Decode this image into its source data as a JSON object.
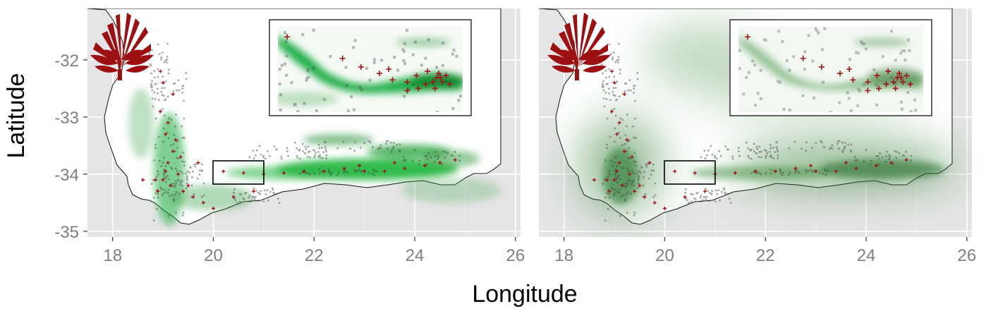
{
  "figure": {
    "xlabel": "Longitude",
    "ylabel": "Latitude",
    "x_ticks": [
      "18",
      "20",
      "22",
      "24",
      "26"
    ],
    "y_ticks": [
      "-32",
      "-33",
      "-34",
      "-35"
    ]
  },
  "chart_data": {
    "type": "map",
    "xlabel": "Longitude",
    "ylabel": "Latitude",
    "xlim": [
      17.5,
      26.1
    ],
    "ylim": [
      -35.1,
      -31.1
    ],
    "x_ticks": [
      18,
      20,
      22,
      24,
      26
    ],
    "y_ticks": [
      -32,
      -33,
      -34,
      -35
    ],
    "panels": [
      {
        "inset_extent": {
          "lon": [
            20.0,
            21.0
          ],
          "lat": [
            -34.1,
            -33.7
          ]
        },
        "presence_color": "#a50f15",
        "suitability_color": "#00a020",
        "presences": [
          [
            19.05,
            -33.95
          ],
          [
            19.1,
            -33.8
          ],
          [
            19.2,
            -33.6
          ],
          [
            19.0,
            -34.1
          ],
          [
            19.15,
            -34.2
          ],
          [
            19.3,
            -34.0
          ],
          [
            19.25,
            -33.4
          ],
          [
            19.1,
            -33.1
          ],
          [
            18.95,
            -32.9
          ],
          [
            19.05,
            -33.3
          ],
          [
            19.4,
            -34.3
          ],
          [
            19.6,
            -34.4
          ],
          [
            19.8,
            -34.5
          ],
          [
            19.5,
            -34.2
          ],
          [
            18.9,
            -34.3
          ],
          [
            18.85,
            -34.1
          ],
          [
            19.2,
            -32.6
          ],
          [
            18.95,
            -32.2
          ],
          [
            20.2,
            -33.95
          ],
          [
            20.6,
            -33.98
          ],
          [
            21.0,
            -34.0
          ],
          [
            21.4,
            -33.98
          ],
          [
            21.8,
            -33.95
          ],
          [
            22.2,
            -33.95
          ],
          [
            22.6,
            -33.9
          ],
          [
            23.0,
            -33.95
          ],
          [
            23.4,
            -33.95
          ],
          [
            23.8,
            -33.9
          ],
          [
            24.2,
            -33.85
          ],
          [
            24.5,
            -33.8
          ],
          [
            24.8,
            -33.75
          ],
          [
            22.9,
            -33.85
          ],
          [
            23.6,
            -33.8
          ],
          [
            20.4,
            -34.4
          ],
          [
            20.8,
            -34.3
          ],
          [
            19.7,
            -33.8
          ],
          [
            19.35,
            -33.7
          ],
          [
            18.6,
            -34.1
          ],
          [
            19.0,
            -32.4
          ],
          [
            20.0,
            -34.6
          ]
        ],
        "inset_presences": [
          [
            20.05,
            -33.75
          ],
          [
            20.35,
            -33.85
          ],
          [
            20.45,
            -33.89
          ],
          [
            20.55,
            -33.92
          ],
          [
            20.62,
            -33.95
          ],
          [
            20.7,
            -33.96
          ],
          [
            20.76,
            -33.99
          ],
          [
            20.8,
            -33.97
          ],
          [
            20.84,
            -33.96
          ],
          [
            20.86,
            -33.94
          ],
          [
            20.87,
            -33.92
          ],
          [
            20.88,
            -33.94
          ],
          [
            20.91,
            -33.93
          ],
          [
            20.89,
            -33.96
          ],
          [
            20.93,
            -33.97
          ],
          [
            20.85,
            -33.99
          ],
          [
            20.75,
            -33.93
          ],
          [
            20.6,
            -33.9
          ],
          [
            20.7,
            -34.0
          ],
          [
            20.81,
            -33.91
          ]
        ]
      },
      {
        "inset_extent": {
          "lon": [
            20.0,
            21.0
          ],
          "lat": [
            -34.1,
            -33.7
          ]
        },
        "presence_color": "#a50f15",
        "suitability_color": "#2f7a2f",
        "presences": [
          [
            19.05,
            -33.95
          ],
          [
            19.1,
            -33.8
          ],
          [
            19.2,
            -33.6
          ],
          [
            19.0,
            -34.1
          ],
          [
            19.15,
            -34.2
          ],
          [
            19.3,
            -34.0
          ],
          [
            19.25,
            -33.4
          ],
          [
            19.1,
            -33.1
          ],
          [
            18.95,
            -32.9
          ],
          [
            19.05,
            -33.3
          ],
          [
            19.4,
            -34.3
          ],
          [
            19.6,
            -34.4
          ],
          [
            19.8,
            -34.5
          ],
          [
            19.5,
            -34.2
          ],
          [
            18.9,
            -34.3
          ],
          [
            18.85,
            -34.1
          ],
          [
            19.2,
            -32.6
          ],
          [
            18.95,
            -32.2
          ],
          [
            20.2,
            -33.95
          ],
          [
            20.6,
            -33.98
          ],
          [
            21.0,
            -34.0
          ],
          [
            21.4,
            -33.98
          ],
          [
            21.8,
            -33.95
          ],
          [
            22.2,
            -33.95
          ],
          [
            22.6,
            -33.9
          ],
          [
            23.0,
            -33.95
          ],
          [
            23.4,
            -33.95
          ],
          [
            23.8,
            -33.9
          ],
          [
            24.2,
            -33.85
          ],
          [
            24.5,
            -33.8
          ],
          [
            24.8,
            -33.75
          ],
          [
            22.9,
            -33.85
          ],
          [
            23.6,
            -33.8
          ],
          [
            20.4,
            -34.4
          ],
          [
            20.8,
            -34.3
          ],
          [
            19.7,
            -33.8
          ],
          [
            19.35,
            -33.7
          ],
          [
            18.6,
            -34.1
          ],
          [
            19.0,
            -32.4
          ],
          [
            20.0,
            -34.6
          ]
        ],
        "inset_presences": [
          [
            20.05,
            -33.75
          ],
          [
            20.35,
            -33.85
          ],
          [
            20.45,
            -33.89
          ],
          [
            20.55,
            -33.92
          ],
          [
            20.62,
            -33.95
          ],
          [
            20.7,
            -33.96
          ],
          [
            20.76,
            -33.99
          ],
          [
            20.8,
            -33.97
          ],
          [
            20.84,
            -33.96
          ],
          [
            20.86,
            -33.94
          ],
          [
            20.87,
            -33.92
          ],
          [
            20.88,
            -33.94
          ],
          [
            20.91,
            -33.93
          ],
          [
            20.89,
            -33.96
          ],
          [
            20.93,
            -33.97
          ],
          [
            20.85,
            -33.99
          ],
          [
            20.75,
            -33.93
          ],
          [
            20.6,
            -33.9
          ],
          [
            20.7,
            -34.0
          ],
          [
            20.81,
            -33.91
          ]
        ]
      }
    ]
  }
}
